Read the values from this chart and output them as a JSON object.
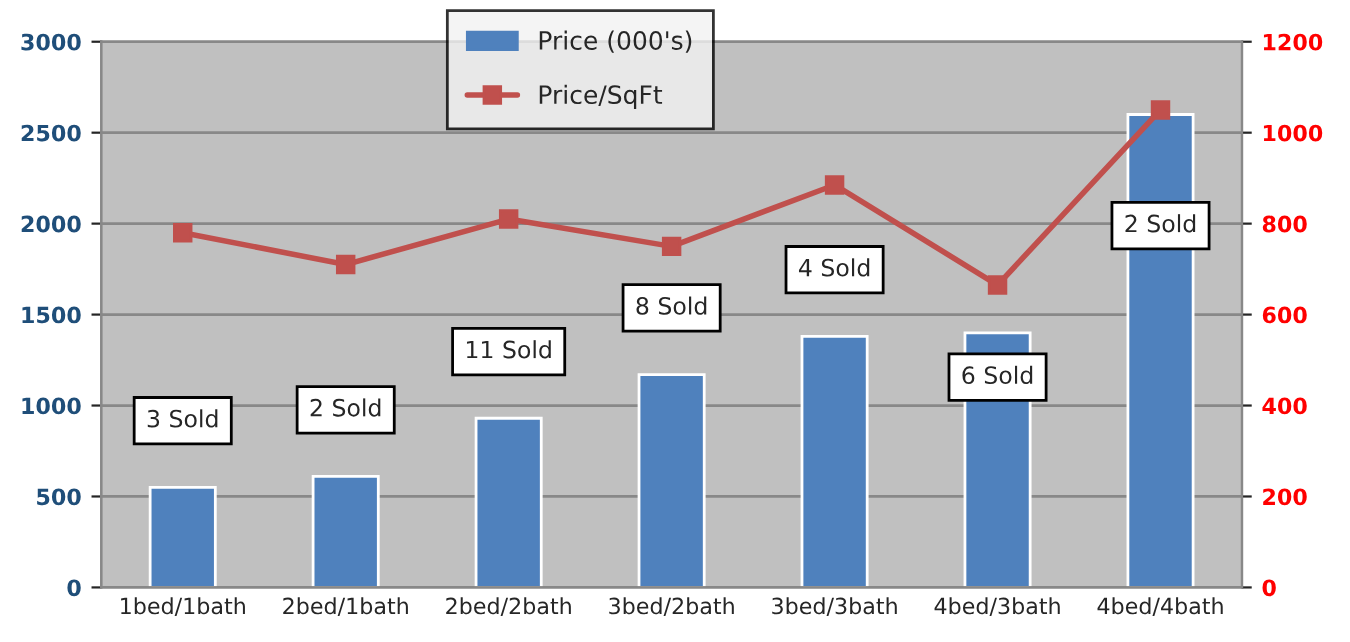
{
  "chart_data": {
    "type": "bar",
    "categories": [
      "1bed/1bath",
      "2bed/1bath",
      "2bed/2bath",
      "3bed/2bath",
      "3bed/3bath",
      "4bed/3bath",
      "4bed/4bath"
    ],
    "series": [
      {
        "name": "Price (000's)",
        "color": "#4f81bd",
        "values": [
          550,
          610,
          930,
          1170,
          1380,
          1400,
          2600
        ]
      },
      {
        "name": "Price/SqFt",
        "type": "line",
        "axis": "y2",
        "color": "#c0504d",
        "marker": "square",
        "values": [
          780,
          710,
          810,
          750,
          885,
          665,
          1050
        ]
      }
    ],
    "ylim": [
      0,
      3000
    ],
    "yticks": [
      0,
      500,
      1000,
      1500,
      2000,
      2500,
      3000
    ],
    "y2lim": [
      0,
      1200
    ],
    "y2ticks": [
      0,
      200,
      400,
      600,
      800,
      1000,
      1200
    ],
    "grid": "y",
    "legend": "top",
    "annotations": [
      "3 Sold",
      "2 Sold",
      "11 Sold",
      "8 Sold",
      "4 Sold",
      "6 Sold",
      "2 Sold"
    ]
  }
}
